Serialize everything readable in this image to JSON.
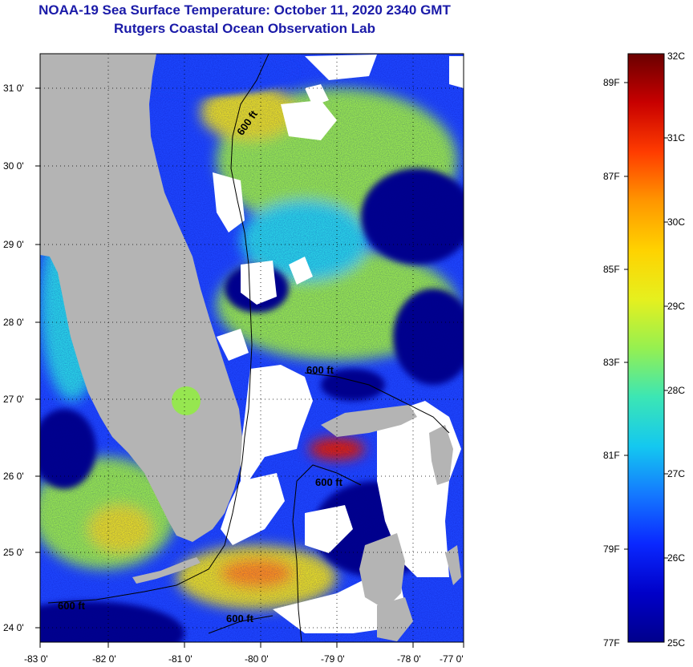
{
  "title": {
    "line1": "NOAA-19 Sea Surface Temperature:  October 11, 2020 2340 GMT",
    "line2": "Rutgers Coastal Ocean Observation Lab"
  },
  "map": {
    "lat_labels": [
      "31 0'",
      "30 0'",
      "29 0'",
      "28 0'",
      "27 0'",
      "26 0'",
      "25 0'",
      "24 0'"
    ],
    "lon_labels": [
      "-83 0'",
      "-82 0'",
      "-81 0'",
      "-80 0'",
      "-79 0'",
      "-78 0'",
      "-77 0'"
    ],
    "contour_labels": [
      "600 ft",
      "600 ft",
      "600 ft",
      "600 ft",
      "600 ft"
    ],
    "colors": {
      "land": "#b4b4b4",
      "cloud": "#ffffff",
      "cold": "#00008c",
      "blue": "#1e46ff",
      "cyan": "#2ad2e6",
      "green": "#96e650",
      "yellow": "#e6dc28",
      "orange": "#ff8c1e",
      "red": "#e61e00"
    }
  },
  "colorbar": {
    "celsius_labels": [
      "32C",
      "31C",
      "30C",
      "29C",
      "28C",
      "27C",
      "26C",
      "25C"
    ],
    "fahrenheit_labels": [
      "89F",
      "87F",
      "85F",
      "83F",
      "81F",
      "79F",
      "77F"
    ],
    "gradient": [
      "#6a0000",
      "#c80000",
      "#ff3c00",
      "#ff9600",
      "#ffd200",
      "#e6f01e",
      "#96f050",
      "#3ce6b4",
      "#14c8f0",
      "#1478ff",
      "#0a28ff",
      "#0000c8",
      "#00008c"
    ]
  }
}
